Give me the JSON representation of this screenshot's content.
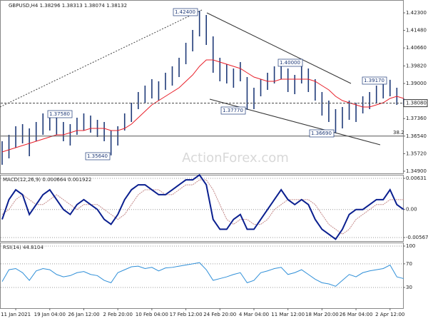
{
  "chart_data": [
    {
      "type": "ohlc",
      "title": "GBPUSD,H4  1.38296 1.38313 1.38074 1.38132",
      "watermark": "ActionForex.com",
      "categories": [
        null,
        null,
        "11 Jan 2021",
        null,
        null,
        null,
        null,
        "19 Jan 04:00",
        null,
        null,
        null,
        null,
        "26 Jan 12:00",
        null,
        null,
        null,
        null,
        "2 Feb 20:00",
        null,
        null,
        null,
        null,
        "10 Feb 04:00",
        null,
        null,
        null,
        null,
        "17 Feb 12:00",
        null,
        null,
        null,
        null,
        "24 Feb 20:00",
        null,
        null,
        null,
        null,
        "4 Mar 04:00",
        null,
        null,
        null,
        null,
        "11 Mar 12:00",
        null,
        null,
        null,
        null,
        "18 Mar 20:00",
        null,
        null,
        null,
        null,
        "26 Mar 04:00",
        null,
        null,
        null,
        null,
        "2 Apr 12:00",
        null,
        null
      ],
      "high": [
        1.363,
        1.366,
        1.37,
        1.371,
        1.369,
        1.372,
        1.376,
        1.3758,
        1.375,
        1.372,
        1.371,
        1.374,
        1.376,
        1.375,
        1.373,
        1.372,
        1.368,
        1.37,
        1.376,
        1.381,
        1.386,
        1.389,
        1.392,
        1.391,
        1.395,
        1.398,
        1.402,
        1.409,
        1.415,
        1.424,
        1.422,
        1.412,
        1.402,
        1.399,
        1.397,
        1.4,
        1.393,
        1.388,
        1.392,
        1.395,
        1.398,
        1.4,
        1.397,
        1.394,
        1.399,
        1.397,
        1.392,
        1.386,
        1.382,
        1.378,
        1.379,
        1.382,
        1.381,
        1.384,
        1.386,
        1.389,
        1.391,
        1.3917,
        1.388,
        1.383
      ],
      "low": [
        1.352,
        1.355,
        1.36,
        1.362,
        1.356,
        1.363,
        1.366,
        1.368,
        1.366,
        1.363,
        1.361,
        1.366,
        1.368,
        1.367,
        1.365,
        1.363,
        1.3564,
        1.361,
        1.368,
        1.372,
        1.378,
        1.381,
        1.383,
        1.382,
        1.387,
        1.389,
        1.393,
        1.399,
        1.405,
        1.412,
        1.408,
        1.395,
        1.391,
        1.39,
        1.388,
        1.391,
        1.3777,
        1.378,
        1.384,
        1.387,
        1.39,
        1.392,
        1.386,
        1.385,
        1.39,
        1.386,
        1.382,
        1.375,
        1.372,
        1.3669,
        1.369,
        1.373,
        1.372,
        1.376,
        1.378,
        1.381,
        1.383,
        1.384,
        1.38,
        1.38
      ],
      "color": "#1f3a78",
      "ma": {
        "color": "#e8202a",
        "values": [
          1.358,
          1.359,
          1.36,
          1.361,
          1.362,
          1.363,
          1.364,
          1.365,
          1.366,
          1.366,
          1.367,
          1.368,
          1.368,
          1.369,
          1.369,
          1.369,
          1.368,
          1.368,
          1.369,
          1.371,
          1.374,
          1.377,
          1.38,
          1.382,
          1.384,
          1.386,
          1.388,
          1.391,
          1.394,
          1.398,
          1.401,
          1.401,
          1.4,
          1.399,
          1.398,
          1.397,
          1.395,
          1.393,
          1.392,
          1.391,
          1.391,
          1.392,
          1.392,
          1.392,
          1.392,
          1.392,
          1.391,
          1.389,
          1.387,
          1.384,
          1.382,
          1.381,
          1.38,
          1.379,
          1.379,
          1.38,
          1.381,
          1.383,
          1.384,
          1.383
        ]
      },
      "annotations": [
        "1.42400",
        "1.40000",
        "1.39170",
        "1.37580",
        "1.37770",
        "1.36690",
        "1.35640"
      ],
      "price_line": {
        "value": 1.3808,
        "label": "1.38080"
      },
      "fib_line": {
        "value": 1.3654,
        "label": "38.2"
      },
      "ylim": [
        1.348,
        1.429
      ],
      "yticks": [
        {
          "value": 1.423,
          "label": "1.42300"
        },
        {
          "value": 1.4148,
          "label": "1.41480"
        },
        {
          "value": 1.4066,
          "label": "1.40660"
        },
        {
          "value": 1.3982,
          "label": "1.39820"
        },
        {
          "value": 1.39,
          "label": "1.39000"
        },
        {
          "value": 1.3736,
          "label": "1.37360"
        },
        {
          "value": 1.3654,
          "label": "1.36540"
        },
        {
          "value": 1.3572,
          "label": "1.35720"
        },
        {
          "value": 1.349,
          "label": "1.34900"
        }
      ],
      "grid": false
    },
    {
      "type": "macd",
      "title": "MACD(12,26,9) 0.000664 0.001922",
      "macd": {
        "color": "#0a1f8f",
        "values": [
          -0.002,
          0.002,
          0.004,
          0.003,
          -0.001,
          0.001,
          0.003,
          0.004,
          0.002,
          0.0,
          -0.001,
          0.001,
          0.002,
          0.001,
          0.0,
          -0.002,
          -0.003,
          -0.001,
          0.002,
          0.004,
          0.005,
          0.005,
          0.004,
          0.003,
          0.003,
          0.004,
          0.005,
          0.006,
          0.006,
          0.007,
          0.005,
          -0.002,
          -0.004,
          -0.004,
          -0.002,
          -0.001,
          -0.004,
          -0.004,
          -0.002,
          0.0,
          0.002,
          0.004,
          0.002,
          0.001,
          0.002,
          0.001,
          -0.002,
          -0.004,
          -0.005,
          -0.006,
          -0.004,
          -0.001,
          0.0,
          0.0,
          0.001,
          0.002,
          0.002,
          0.004,
          0.001,
          0.0
        ]
      },
      "signal": {
        "color": "#c48a8a",
        "values": [
          -0.001,
          0.0,
          0.002,
          0.003,
          0.002,
          0.001,
          0.001,
          0.002,
          0.003,
          0.002,
          0.001,
          0.0,
          0.001,
          0.001,
          0.001,
          0.0,
          -0.001,
          -0.002,
          -0.001,
          0.001,
          0.003,
          0.004,
          0.004,
          0.004,
          0.003,
          0.003,
          0.004,
          0.005,
          0.005,
          0.006,
          0.006,
          0.004,
          0.001,
          -0.002,
          -0.003,
          -0.002,
          -0.002,
          -0.003,
          -0.003,
          -0.002,
          0.0,
          0.001,
          0.002,
          0.002,
          0.002,
          0.002,
          0.001,
          -0.001,
          -0.003,
          -0.004,
          -0.005,
          -0.004,
          -0.002,
          -0.001,
          0.0,
          0.001,
          0.001,
          0.002,
          0.002,
          0.002
        ]
      },
      "ylim": [
        -0.006393,
        0.007032
      ],
      "yticks": [
        0.00631,
        {
          "value": 0,
          "label": "0.00"
        },
        -0.005671
      ],
      "grid": true
    },
    {
      "type": "line",
      "title": "RSI(14) 44.8104",
      "color": "#2f8fd8",
      "values": [
        40,
        60,
        62,
        55,
        42,
        58,
        62,
        60,
        52,
        48,
        50,
        55,
        57,
        52,
        50,
        42,
        38,
        55,
        60,
        65,
        66,
        62,
        64,
        58,
        63,
        64,
        66,
        68,
        70,
        72,
        60,
        42,
        45,
        48,
        52,
        55,
        38,
        42,
        55,
        58,
        62,
        64,
        52,
        55,
        60,
        52,
        44,
        38,
        36,
        32,
        42,
        52,
        48,
        55,
        58,
        60,
        62,
        68,
        48,
        45
      ],
      "ylim": [
        -5,
        106
      ],
      "yticks": [
        100,
        70,
        30
      ],
      "grid": true
    }
  ]
}
